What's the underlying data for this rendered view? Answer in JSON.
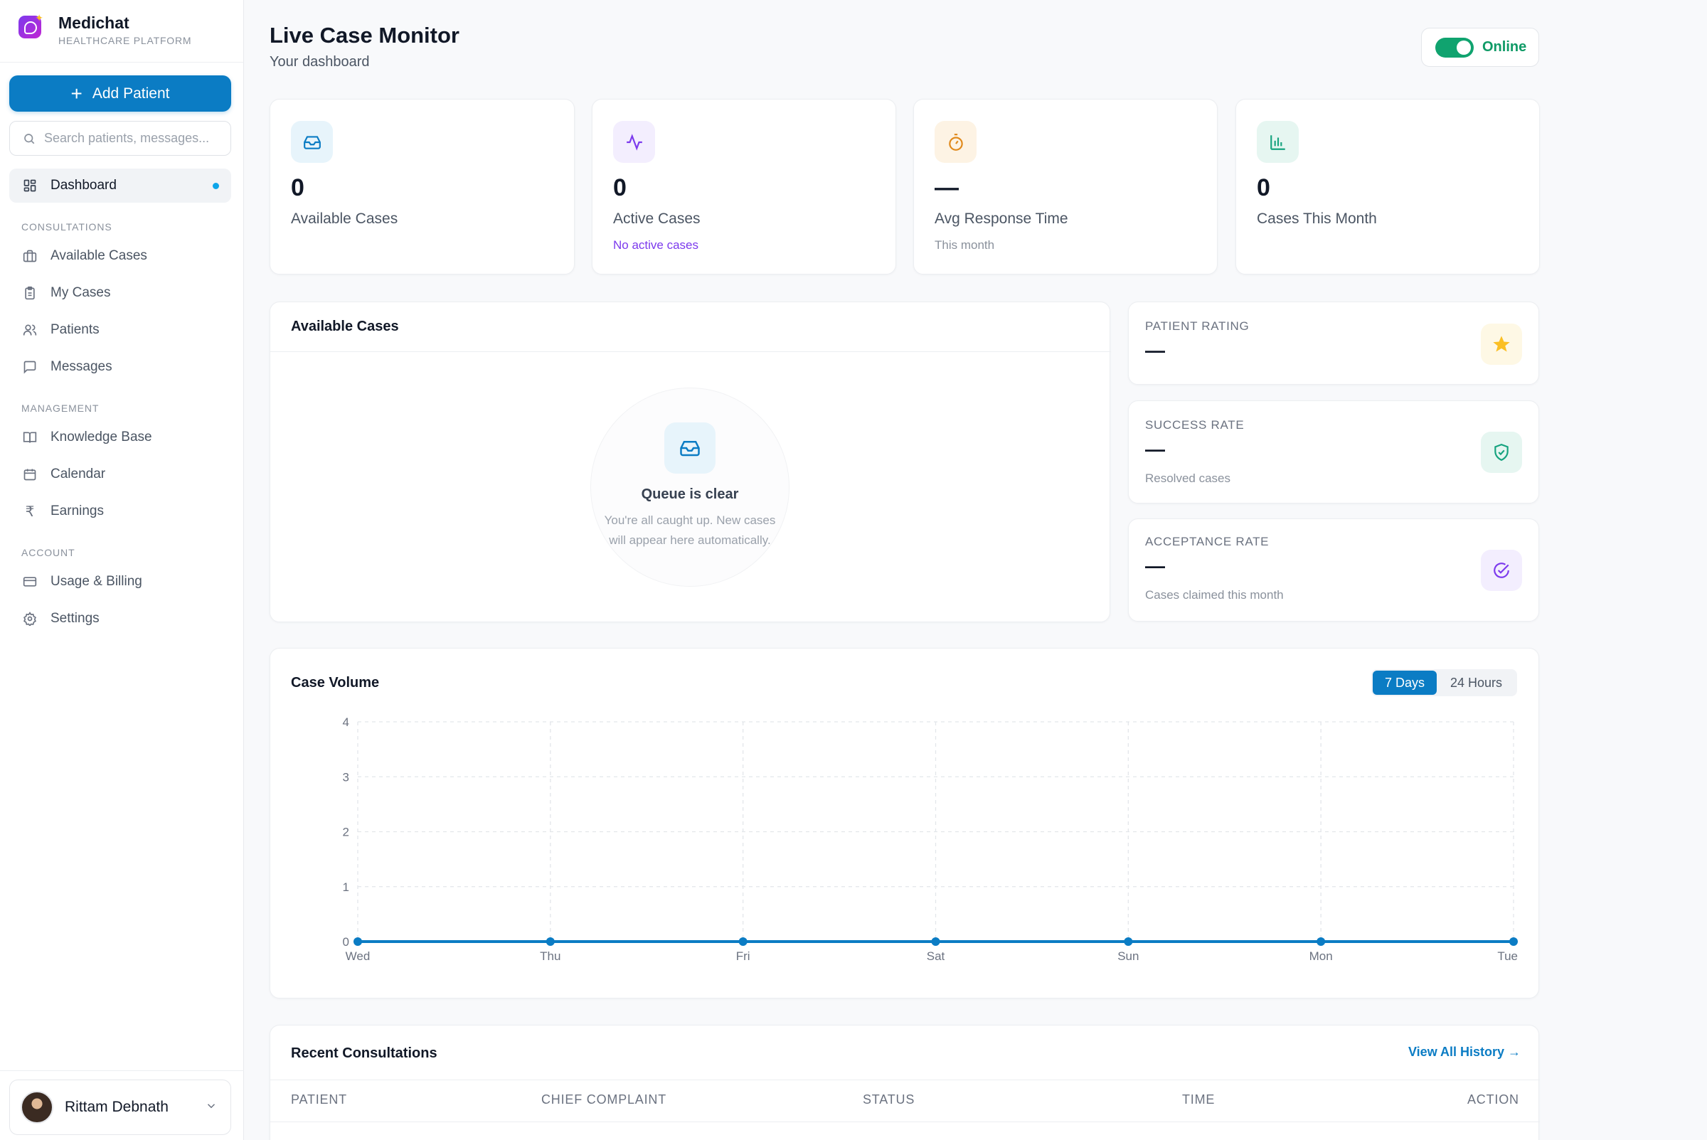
{
  "brand": {
    "name": "Medichat",
    "subtitle": "HEALTHCARE PLATFORM"
  },
  "sidebar": {
    "add_patient_label": "Add Patient",
    "search_placeholder": "Search patients, messages...",
    "dashboard_label": "Dashboard",
    "sections": {
      "consultations": "CONSULTATIONS",
      "management": "MANAGEMENT",
      "account": "ACCOUNT"
    },
    "items": {
      "available_cases": "Available Cases",
      "my_cases": "My Cases",
      "patients": "Patients",
      "messages": "Messages",
      "knowledge_base": "Knowledge Base",
      "calendar": "Calendar",
      "earnings": "Earnings",
      "usage_billing": "Usage & Billing",
      "settings": "Settings"
    },
    "user_name": "Rittam Debnath"
  },
  "header": {
    "title": "Live Case Monitor",
    "subtitle": "Your dashboard",
    "status_label": "Online"
  },
  "stats": [
    {
      "value": "0",
      "label": "Available Cases",
      "note": ""
    },
    {
      "value": "0",
      "label": "Active Cases",
      "note": "No active cases"
    },
    {
      "value": "—",
      "label": "Avg Response Time",
      "note": "This month"
    },
    {
      "value": "0",
      "label": "Cases This Month",
      "note": ""
    }
  ],
  "available_panel": {
    "title": "Available Cases",
    "empty_title": "Queue is clear",
    "empty_line1": "You're all caught up. New cases",
    "empty_line2": "will appear here automatically."
  },
  "metrics": {
    "patient_rating": {
      "label": "PATIENT RATING",
      "value": "—"
    },
    "success_rate": {
      "label": "SUCCESS RATE",
      "value": "—",
      "note": "Resolved cases"
    },
    "acceptance_rate": {
      "label": "ACCEPTANCE RATE",
      "value": "—",
      "note": "Cases claimed this month"
    }
  },
  "case_volume": {
    "title": "Case Volume",
    "range_options": [
      "7 Days",
      "24 Hours"
    ],
    "selected_range": "7 Days"
  },
  "chart_data": {
    "type": "line",
    "categories": [
      "Wed",
      "Thu",
      "Fri",
      "Sat",
      "Sun",
      "Mon",
      "Tue"
    ],
    "series": [
      {
        "values": [
          0,
          0,
          0,
          0,
          0,
          0,
          0
        ]
      }
    ],
    "ylim": [
      0,
      4
    ],
    "yticks": [
      "0",
      "1",
      "2",
      "3",
      "4"
    ],
    "grid": true,
    "color": "#0b7cc4"
  },
  "recent": {
    "title": "Recent Consultations",
    "view_all_label": "View All History →",
    "columns": [
      "PATIENT",
      "CHIEF COMPLAINT",
      "STATUS",
      "TIME",
      "ACTION"
    ]
  },
  "colors": {
    "primary": "#0b7cc4",
    "online": "#10a36f",
    "accent_purple": "#7c3aed",
    "accent_orange": "#e0891b",
    "accent_green": "#16a37f",
    "star": "#fbbf24"
  }
}
